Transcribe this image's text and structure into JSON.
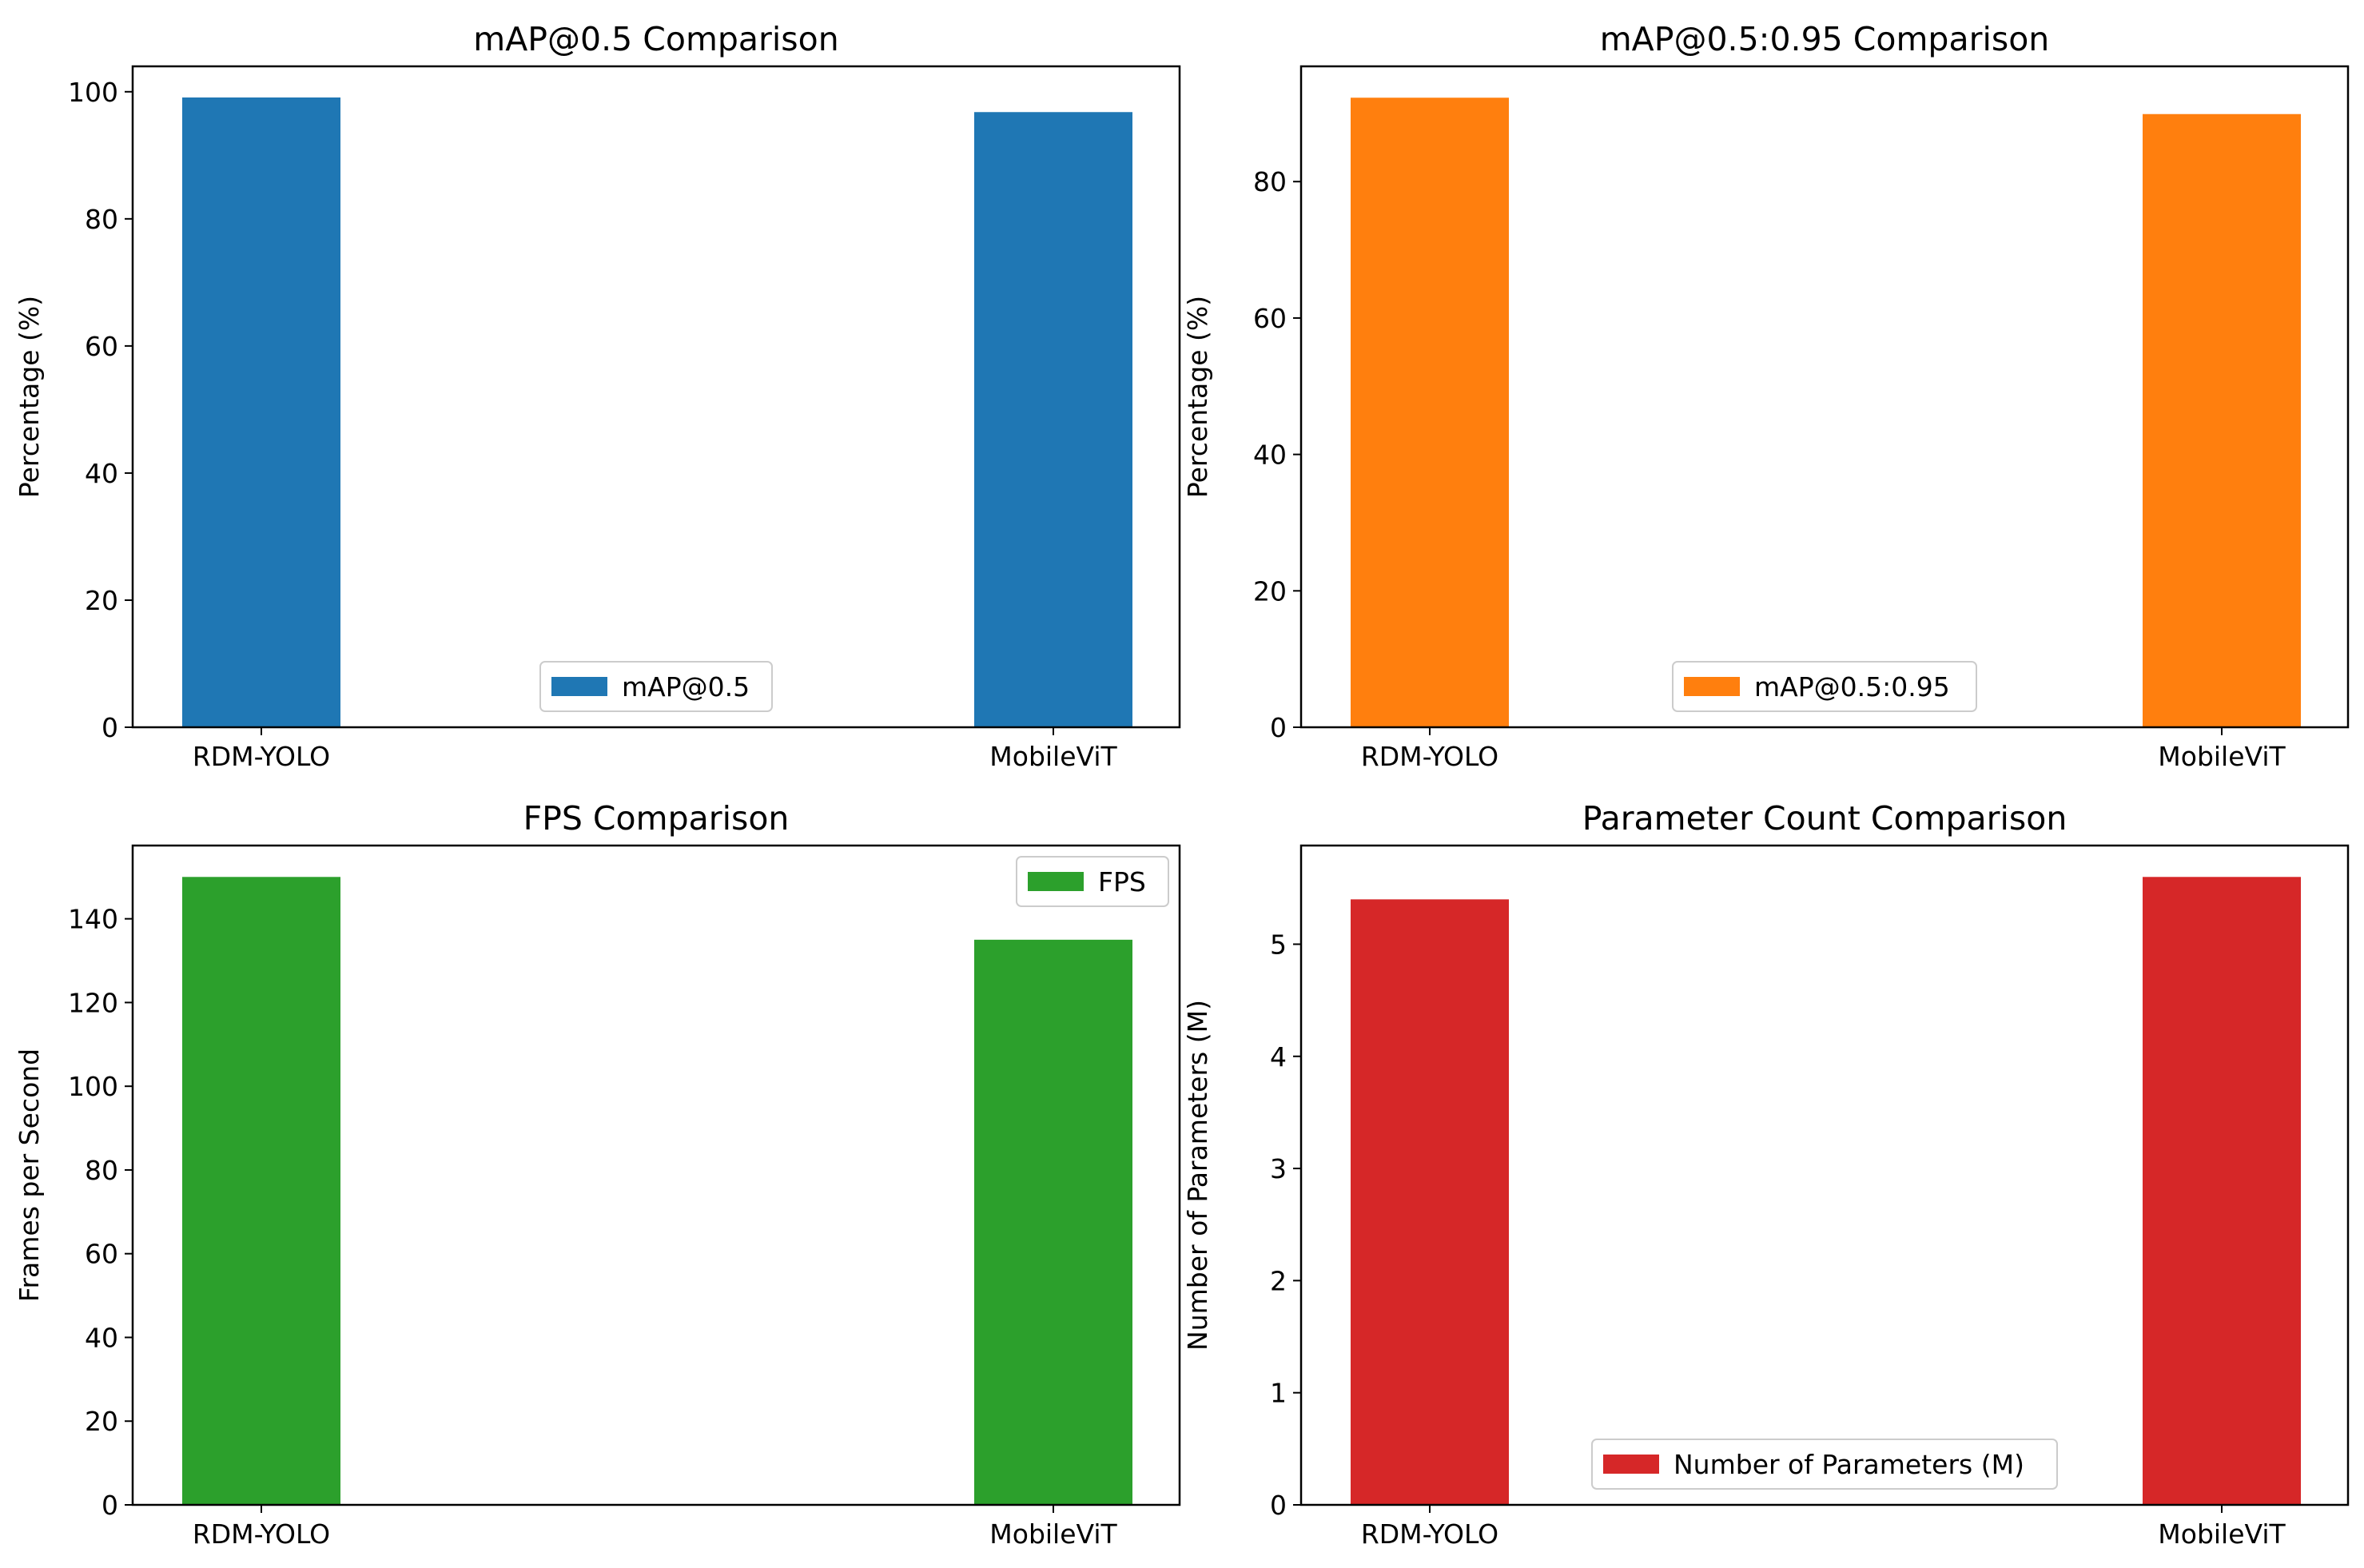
{
  "chart_data": [
    {
      "type": "bar",
      "title": "mAP@0.5 Comparison",
      "xlabel": "",
      "ylabel": "Percentage (%)",
      "categories": [
        "RDM-YOLO",
        "MobileViT"
      ],
      "series": [
        {
          "name": "mAP@0.5",
          "values": [
            99.1,
            96.8
          ],
          "color": "#1f77b4"
        }
      ],
      "ylim": [
        0,
        104
      ],
      "yticks": [
        0,
        20,
        40,
        60,
        80,
        100
      ],
      "legend": "bottom-center",
      "grid": false
    },
    {
      "type": "bar",
      "title": "mAP@0.5:0.95 Comparison",
      "xlabel": "",
      "ylabel": "Percentage (%)",
      "categories": [
        "RDM-YOLO",
        "MobileViT"
      ],
      "series": [
        {
          "name": "mAP@0.5:0.95",
          "values": [
            92.3,
            89.9
          ],
          "color": "#ff7f0e"
        }
      ],
      "ylim": [
        0,
        96.9
      ],
      "yticks": [
        0,
        20,
        40,
        60,
        80
      ],
      "legend": "bottom-center",
      "grid": false
    },
    {
      "type": "bar",
      "title": "FPS Comparison",
      "xlabel": "",
      "ylabel": "Frames per Second",
      "categories": [
        "RDM-YOLO",
        "MobileViT"
      ],
      "series": [
        {
          "name": "FPS",
          "values": [
            150,
            135
          ],
          "color": "#2ca02c"
        }
      ],
      "ylim": [
        0,
        157.5
      ],
      "yticks": [
        0,
        20,
        40,
        60,
        80,
        100,
        120,
        140
      ],
      "legend": "top-right",
      "grid": false
    },
    {
      "type": "bar",
      "title": "Parameter Count Comparison",
      "xlabel": "",
      "ylabel": "Number of Parameters (M)",
      "categories": [
        "RDM-YOLO",
        "MobileViT"
      ],
      "series": [
        {
          "name": "Number of Parameters (M)",
          "values": [
            5.4,
            5.6
          ],
          "color": "#d62728"
        }
      ],
      "ylim": [
        0,
        5.88
      ],
      "yticks": [
        0,
        1,
        2,
        3,
        4,
        5
      ],
      "legend": "bottom-center",
      "grid": false
    }
  ]
}
